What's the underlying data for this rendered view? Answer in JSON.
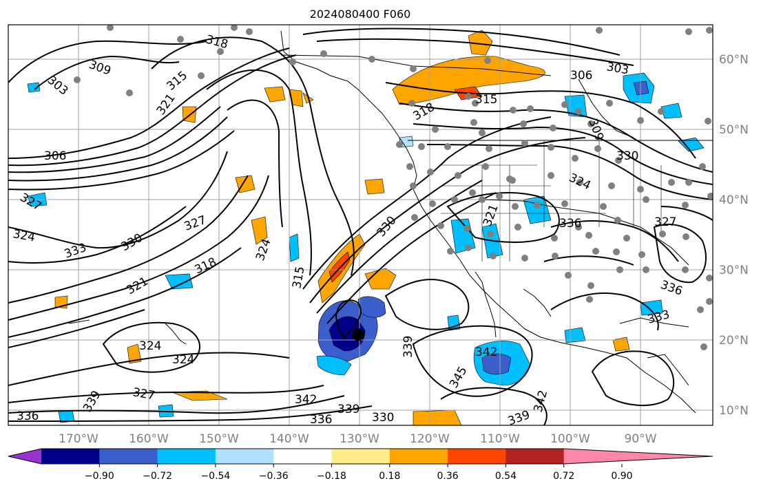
{
  "title": "2024080400 F060",
  "longitude_labels": [
    "170°W",
    "160°W",
    "150°W",
    "140°W",
    "130°W",
    "120°W",
    "110°W",
    "100°W",
    "90°W"
  ],
  "latitude_labels": [
    "60°N",
    "50°N",
    "40°N",
    "30°N",
    "20°N",
    "10°N"
  ],
  "colorbar": {
    "tick_labels": [
      "−0.90",
      "−0.72",
      "−0.54",
      "−0.36",
      "−0.18",
      "0.18",
      "0.36",
      "0.54",
      "0.72",
      "0.90"
    ],
    "colors": [
      "#9a32cd",
      "#00008b",
      "#3a5fcd",
      "#00bfff",
      "#b0e2ff",
      "#ffffff",
      "#ffec8b",
      "#ffa500",
      "#ff4500",
      "#b22222",
      "#ff88aa"
    ]
  },
  "contour_labels": [
    "318",
    "309",
    "303",
    "315",
    "321",
    "306",
    "327",
    "324",
    "333",
    "330",
    "327",
    "318",
    "321",
    "324",
    "324",
    "324",
    "315",
    "339",
    "342",
    "345",
    "342",
    "339",
    "330",
    "327",
    "336",
    "339",
    "342",
    "336",
    "339",
    "306",
    "303",
    "315",
    "318",
    "309",
    "324",
    "336",
    "327",
    "330",
    "336",
    "333",
    "330",
    "321"
  ]
}
